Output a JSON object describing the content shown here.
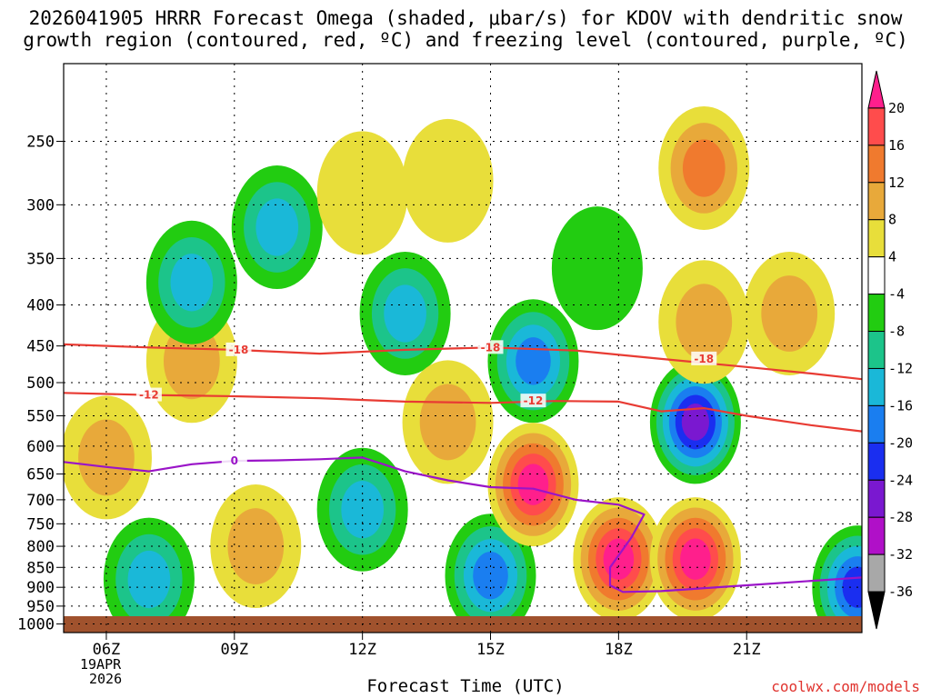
{
  "title_line1": "2026041905 HRRR Forecast Omega (shaded, μbar/s) for KDOV with dendritic snow",
  "title_line2": "growth region (contoured, red, ºC) and freezing level (contoured, purple, ºC)",
  "x_axis_title": "Forecast Time (UTC)",
  "credit": "coolwx.com/models",
  "date_label": [
    "19APR",
    "2026"
  ],
  "chart_data": {
    "type": "heatmap",
    "title": "2026041905 HRRR Forecast Omega (shaded, μbar/s) for KDOV with dendritic snow growth region (contoured, red, ºC) and freezing level (contoured, purple, ºC)",
    "xlabel": "Forecast Time (UTC)",
    "ylabel": "",
    "x_range_hours": [
      5,
      23.7
    ],
    "y_range_mb": [
      1025,
      200
    ],
    "y_scale": "log",
    "grid": true,
    "x_ticks": [
      {
        "hour": 6,
        "label": "06Z"
      },
      {
        "hour": 9,
        "label": "09Z"
      },
      {
        "hour": 12,
        "label": "12Z"
      },
      {
        "hour": 15,
        "label": "15Z"
      },
      {
        "hour": 18,
        "label": "18Z"
      },
      {
        "hour": 21,
        "label": "21Z"
      }
    ],
    "y_ticks": [
      250,
      300,
      350,
      400,
      450,
      500,
      550,
      600,
      650,
      700,
      750,
      800,
      850,
      900,
      950,
      1000
    ],
    "colorbar": {
      "labels": [
        20,
        16,
        12,
        8,
        4,
        -4,
        -8,
        -12,
        -16,
        -20,
        -24,
        -28,
        -32,
        -36
      ],
      "colors": [
        "#ff1f8c",
        "#ff4c4c",
        "#f07a2e",
        "#e8a93a",
        "#e8de3a",
        "#ffffff",
        "#22cc11",
        "#1cc48a",
        "#1ab8d8",
        "#1a7ef0",
        "#1a2ef0",
        "#7a18d0",
        "#b010c8",
        "#a8a8a8",
        "#000000"
      ]
    },
    "omega_features": [
      {
        "hour": 6.0,
        "mb": 620,
        "value": 8
      },
      {
        "hour": 7.0,
        "mb": 880,
        "value": -12
      },
      {
        "hour": 8.0,
        "mb": 470,
        "value": 8
      },
      {
        "hour": 8.0,
        "mb": 375,
        "value": -12
      },
      {
        "hour": 9.5,
        "mb": 800,
        "value": 8
      },
      {
        "hour": 10.0,
        "mb": 320,
        "value": -12
      },
      {
        "hour": 12.0,
        "mb": 720,
        "value": -12
      },
      {
        "hour": 12.0,
        "mb": 290,
        "value": 4
      },
      {
        "hour": 13.0,
        "mb": 410,
        "value": -12
      },
      {
        "hour": 14.0,
        "mb": 560,
        "value": 8
      },
      {
        "hour": 14.0,
        "mb": 280,
        "value": 4
      },
      {
        "hour": 15.0,
        "mb": 870,
        "value": -16
      },
      {
        "hour": 16.0,
        "mb": 470,
        "value": -16
      },
      {
        "hour": 16.0,
        "mb": 670,
        "value": 20
      },
      {
        "hour": 17.5,
        "mb": 360,
        "value": -4
      },
      {
        "hour": 18.0,
        "mb": 830,
        "value": 20
      },
      {
        "hour": 19.8,
        "mb": 830,
        "value": 20
      },
      {
        "hour": 19.8,
        "mb": 560,
        "value": -24
      },
      {
        "hour": 20.0,
        "mb": 270,
        "value": 12
      },
      {
        "hour": 20.0,
        "mb": 420,
        "value": 8
      },
      {
        "hour": 22.0,
        "mb": 410,
        "value": 8
      },
      {
        "hour": 23.6,
        "mb": 900,
        "value": -20
      }
    ],
    "contours": [
      {
        "level": -18,
        "color": "#e83b33",
        "labels": [
          "-18",
          "-18",
          "-18"
        ],
        "label_hours": [
          9.1,
          15.0,
          20.0
        ],
        "points": [
          [
            5,
            448
          ],
          [
            7,
            452
          ],
          [
            9,
            455
          ],
          [
            11,
            460
          ],
          [
            13,
            455
          ],
          [
            15,
            452
          ],
          [
            17,
            456
          ],
          [
            19,
            467
          ],
          [
            21,
            478
          ],
          [
            22.5,
            487
          ],
          [
            23.7,
            495
          ]
        ]
      },
      {
        "level": -12,
        "color": "#e83b33",
        "labels": [
          "-12",
          "-12"
        ],
        "label_hours": [
          7.0,
          16.0
        ],
        "points": [
          [
            5,
            515
          ],
          [
            7,
            518
          ],
          [
            9,
            520
          ],
          [
            11,
            523
          ],
          [
            13,
            528
          ],
          [
            15,
            530
          ],
          [
            16.5,
            527
          ],
          [
            18,
            528
          ],
          [
            19,
            543
          ],
          [
            20,
            538
          ],
          [
            21,
            550
          ],
          [
            22.5,
            565
          ],
          [
            23.7,
            575
          ]
        ]
      },
      {
        "level": 0,
        "color": "#9a14c8",
        "labels": [
          "0"
        ],
        "label_hours": [
          9.0
        ],
        "points": [
          [
            5,
            628
          ],
          [
            6,
            637
          ],
          [
            7,
            645
          ],
          [
            8,
            632
          ],
          [
            9,
            626
          ],
          [
            10,
            625
          ],
          [
            11,
            623
          ],
          [
            12,
            620
          ],
          [
            13,
            645
          ],
          [
            14,
            662
          ],
          [
            15,
            675
          ],
          [
            16,
            678
          ],
          [
            17,
            700
          ],
          [
            18,
            710
          ],
          [
            18.6,
            730
          ],
          [
            18.3,
            780
          ],
          [
            17.8,
            850
          ],
          [
            17.8,
            895
          ],
          [
            18.1,
            912
          ],
          [
            19,
            910
          ],
          [
            21,
            895
          ],
          [
            23,
            880
          ],
          [
            23.7,
            875
          ]
        ]
      }
    ]
  }
}
